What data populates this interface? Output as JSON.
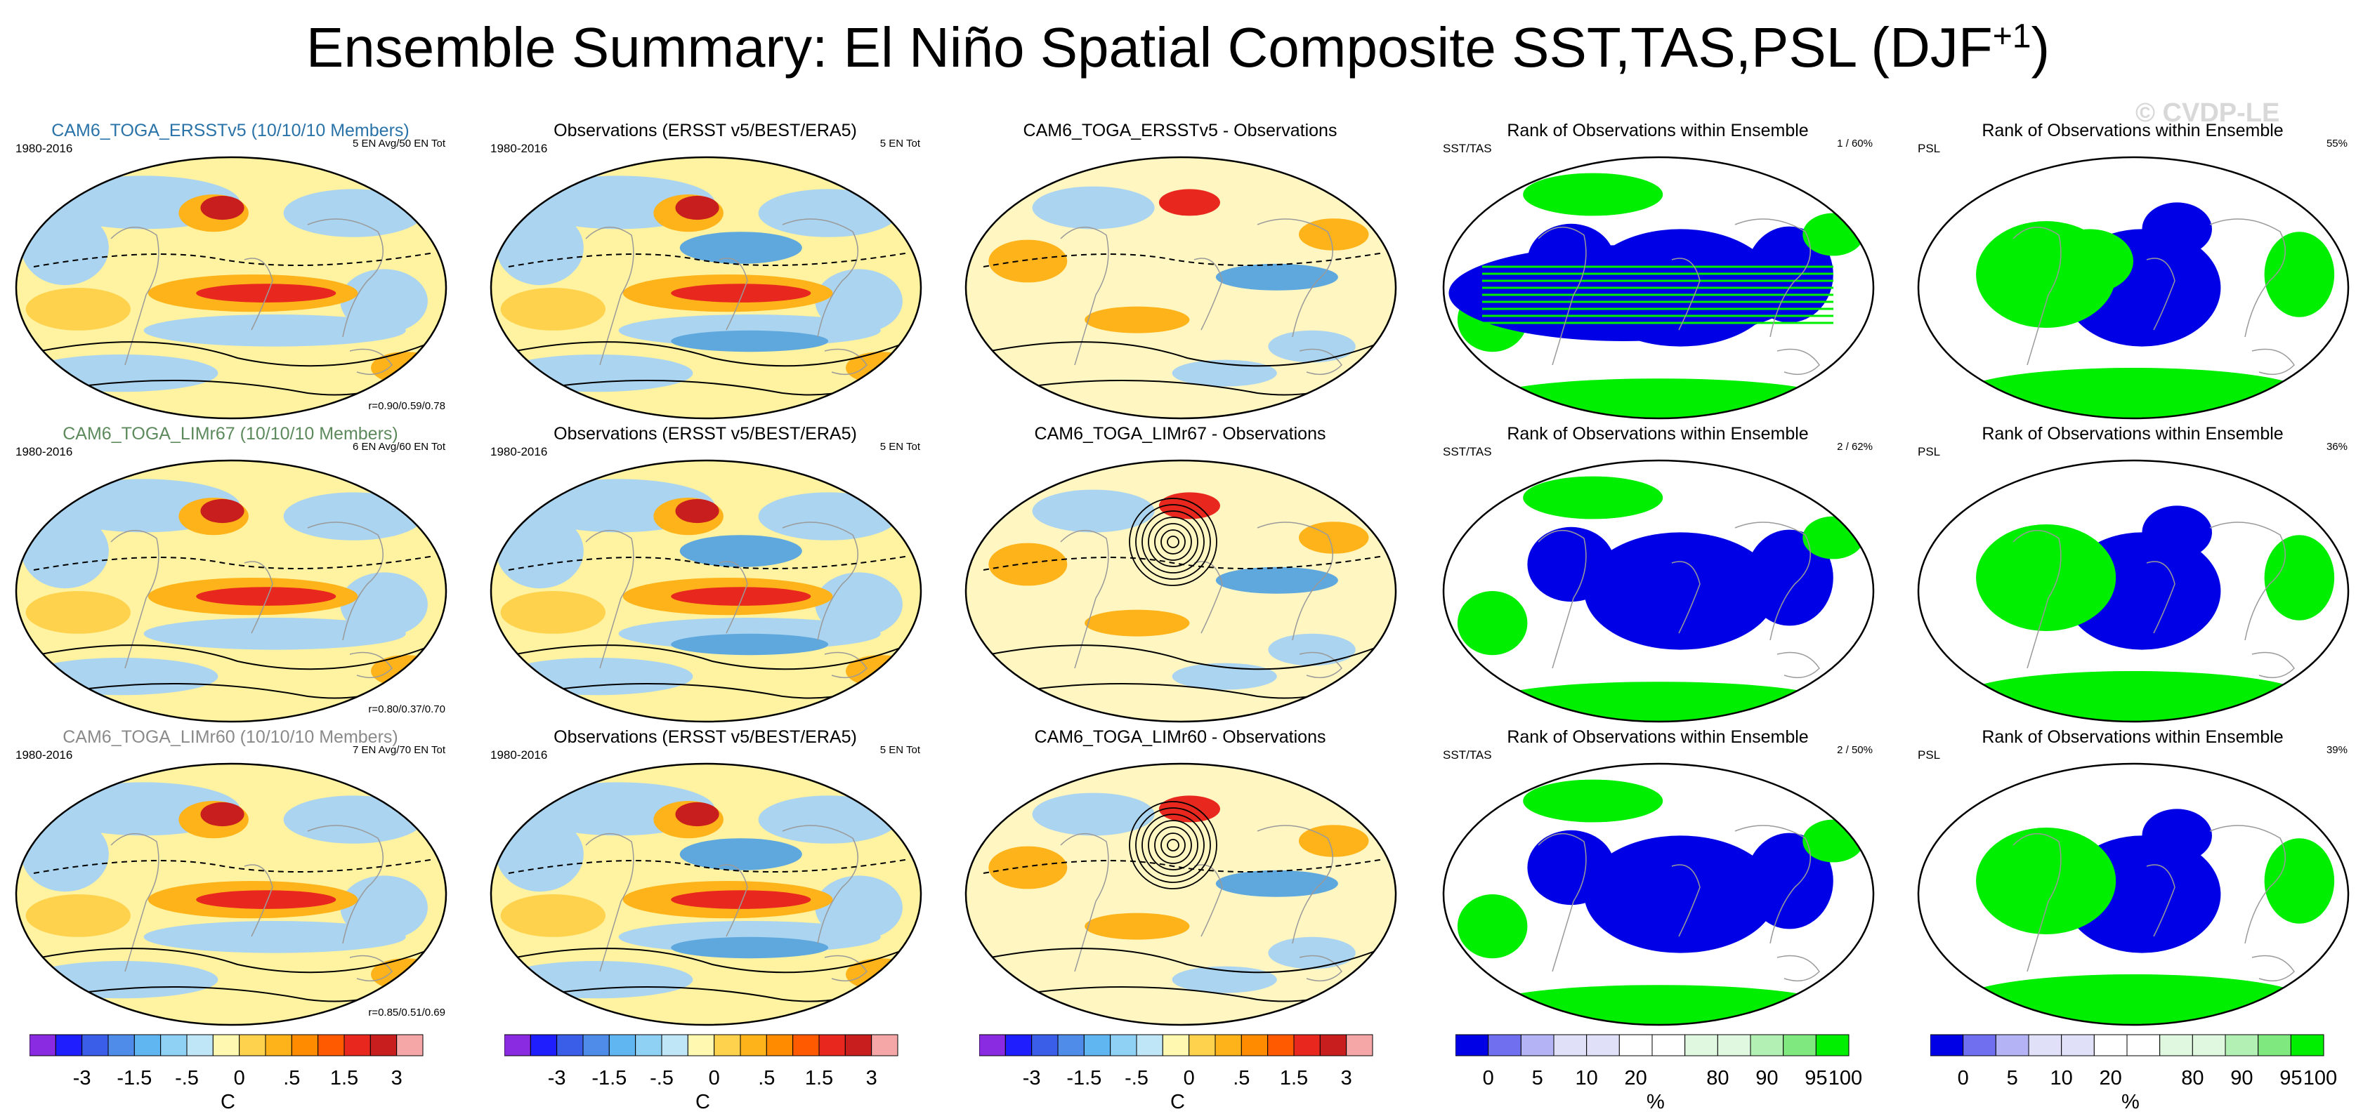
{
  "title_main": "Ensemble Summary: El Niño Spatial Composite SST,TAS,PSL (DJF",
  "title_sup": "+1",
  "title_end": ")",
  "watermark": "© CVDP-LE",
  "colors": {
    "ens_blue": "#2a73a8",
    "ens_green": "#5d8a5d",
    "ens_gray": "#8a8a8a",
    "rank_blue": "#0000e6",
    "rank_green": "#00ee00"
  },
  "rows": [
    {
      "ensemble": {
        "title": "CAM6_TOGA_ERSSTv5 (10/10/10 Members)",
        "years": "1980-2016",
        "count": "5 EN Avg/50 EN Tot",
        "corr": "r=0.90/0.59/0.78"
      },
      "observations": {
        "title": "Observations (ERSST v5/BEST/ERA5)",
        "years": "1980-2016",
        "count": "5 EN Tot"
      },
      "difference": {
        "title": "CAM6_TOGA_ERSSTv5 - Observations"
      },
      "rank_sst": {
        "title": "Rank of Observations within Ensemble",
        "var": "SST/TAS",
        "pct": "1 /  60%"
      },
      "rank_psl": {
        "title": "Rank of Observations within Ensemble",
        "var": "PSL",
        "pct": "55%"
      }
    },
    {
      "ensemble": {
        "title": "CAM6_TOGA_LIMr67 (10/10/10 Members)",
        "years": "1980-2016",
        "count": "6 EN Avg/60 EN Tot",
        "corr": "r=0.80/0.37/0.70"
      },
      "observations": {
        "title": "Observations (ERSST v5/BEST/ERA5)",
        "years": "1980-2016",
        "count": "5 EN Tot"
      },
      "difference": {
        "title": "CAM6_TOGA_LIMr67 - Observations"
      },
      "rank_sst": {
        "title": "Rank of Observations within Ensemble",
        "var": "SST/TAS",
        "pct": "2 /  62%"
      },
      "rank_psl": {
        "title": "Rank of Observations within Ensemble",
        "var": "PSL",
        "pct": "36%"
      }
    },
    {
      "ensemble": {
        "title": "CAM6_TOGA_LIMr60 (10/10/10 Members)",
        "years": "1980-2016",
        "count": "7 EN Avg/70 EN Tot",
        "corr": "r=0.85/0.51/0.69"
      },
      "observations": {
        "title": "Observations (ERSST v5/BEST/ERA5)",
        "years": "1980-2016",
        "count": "5 EN Tot"
      },
      "difference": {
        "title": "CAM6_TOGA_LIMr60 - Observations"
      },
      "rank_sst": {
        "title": "Rank of Observations within Ensemble",
        "var": "SST/TAS",
        "pct": "2 /  50%"
      },
      "rank_psl": {
        "title": "Rank of Observations within Ensemble",
        "var": "PSL",
        "pct": "39%"
      }
    }
  ],
  "chart_data": [
    {
      "type": "colorbar",
      "name": "composite anomaly scale",
      "unit": "C",
      "tick_labels": [
        "-3",
        "-1.5",
        "-.5",
        "0",
        ".5",
        "1.5",
        "3"
      ],
      "colors": [
        "#8a2be2",
        "#1e1eff",
        "#3a5ee8",
        "#4f8be8",
        "#5fb6f0",
        "#8fd0f5",
        "#bfe6f7",
        "#fff8b0",
        "#ffd24d",
        "#ffb31a",
        "#ff8c00",
        "#ff5a00",
        "#e8281e",
        "#c81e1e",
        "#f5a6a6"
      ]
    },
    {
      "type": "colorbar",
      "name": "rank percentile scale",
      "unit": "%",
      "tick_labels": [
        "0",
        "5",
        "10",
        "20",
        "80",
        "90",
        "95",
        "100"
      ],
      "colors": [
        "#0000e6",
        "#6f6ff0",
        "#b3b3f5",
        "#e0e0f8",
        "#e0e0f8",
        "#ffffff",
        "#ffffff",
        "#e0f8e0",
        "#e0f8e0",
        "#b3f0b3",
        "#7fe87f",
        "#00ee00"
      ]
    }
  ]
}
